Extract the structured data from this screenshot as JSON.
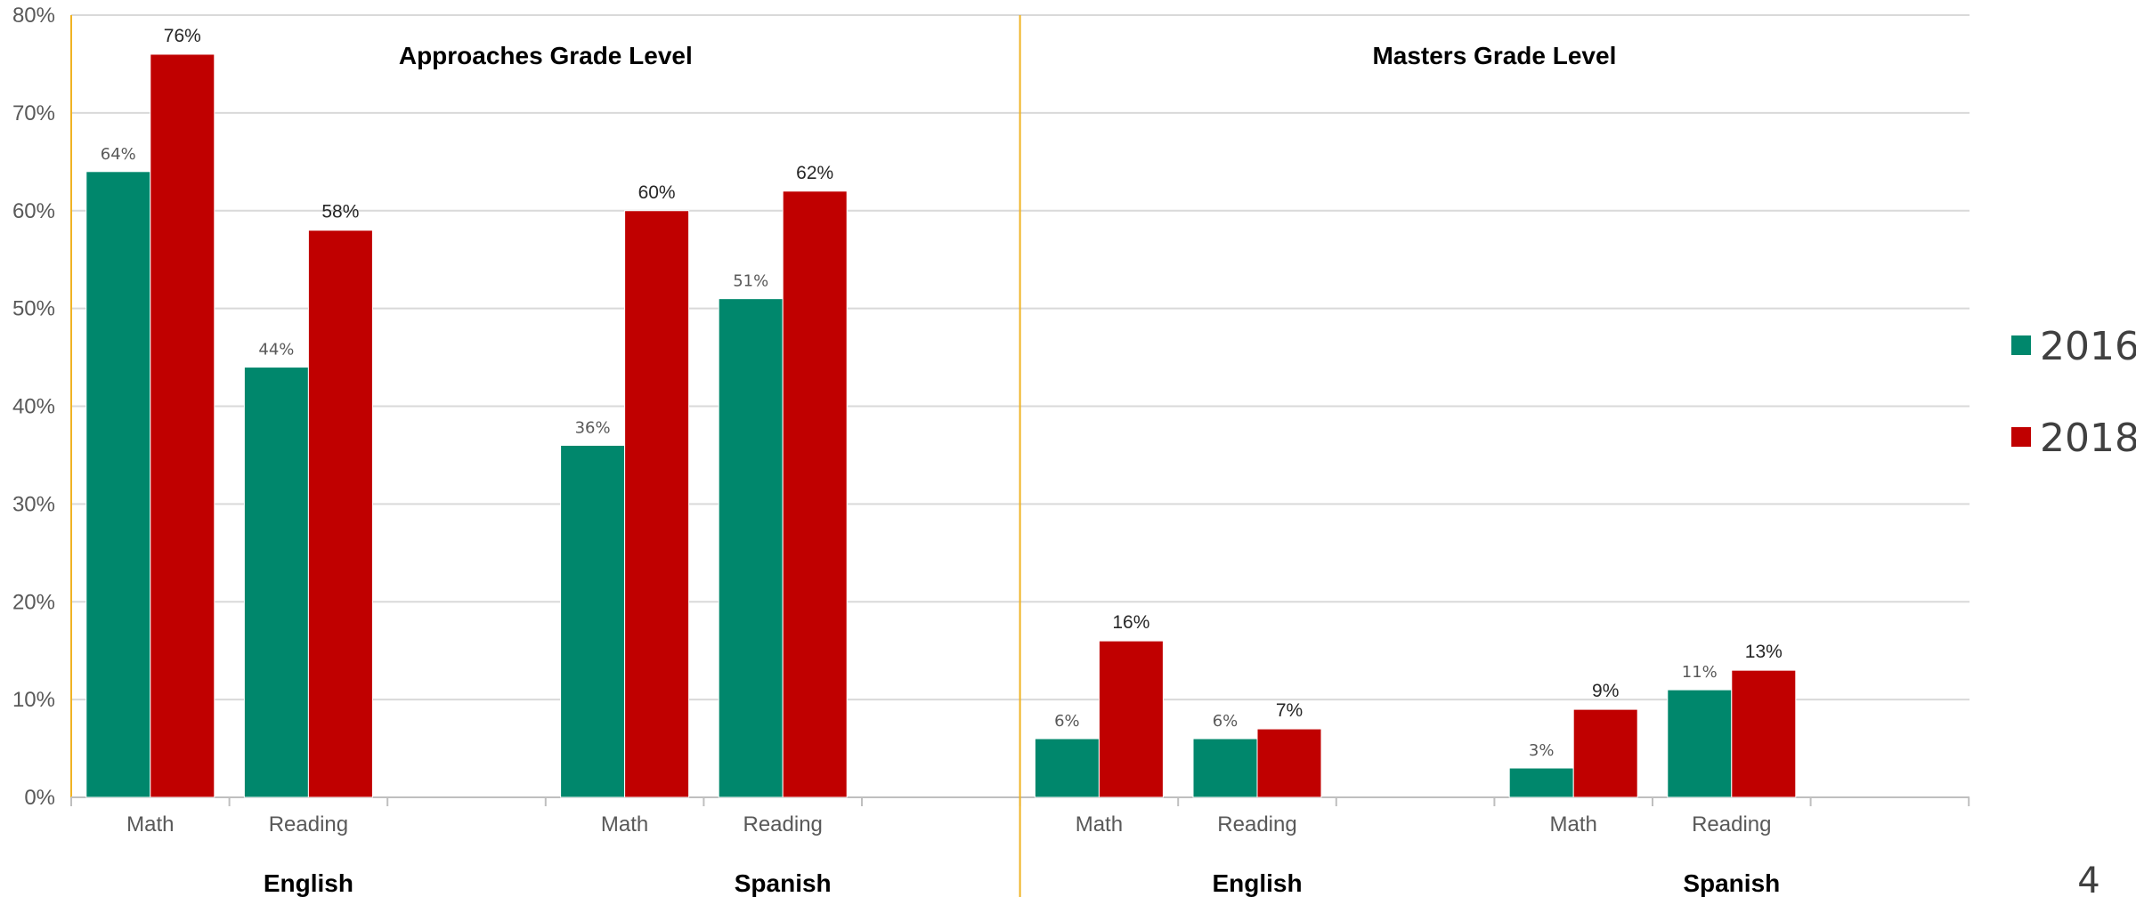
{
  "chart_data": {
    "type": "bar",
    "y_axis": {
      "ylim": [
        0,
        80
      ],
      "ticks": [
        "0%",
        "10%",
        "20%",
        "30%",
        "40%",
        "50%",
        "60%",
        "70%",
        "80%"
      ],
      "grid": true
    },
    "series": [
      {
        "name": "2016",
        "color": "#00876c"
      },
      {
        "name": "2018",
        "color": "#c00000"
      }
    ],
    "legend": {
      "placement": "right"
    },
    "panels": [
      {
        "title": "Approaches Grade Level",
        "groups": [
          {
            "language": "English",
            "categories": [
              {
                "label": "Math",
                "values": [
                  64,
                  76
                ],
                "labels": [
                  "64%",
                  "76%"
                ]
              },
              {
                "label": "Reading",
                "values": [
                  44,
                  58
                ],
                "labels": [
                  "44%",
                  "58%"
                ]
              }
            ]
          },
          {
            "language": "Spanish",
            "categories": [
              {
                "label": "Math",
                "values": [
                  36,
                  60
                ],
                "labels": [
                  "36%",
                  "60%"
                ]
              },
              {
                "label": "Reading",
                "values": [
                  51,
                  62
                ],
                "labels": [
                  "51%",
                  "62%"
                ]
              }
            ]
          }
        ]
      },
      {
        "title": "Masters Grade Level",
        "groups": [
          {
            "language": "English",
            "categories": [
              {
                "label": "Math",
                "values": [
                  6,
                  16
                ],
                "labels": [
                  "6%",
                  "16%"
                ]
              },
              {
                "label": "Reading",
                "values": [
                  6,
                  7
                ],
                "labels": [
                  "6%",
                  "7%"
                ]
              }
            ]
          },
          {
            "language": "Spanish",
            "categories": [
              {
                "label": "Math",
                "values": [
                  3,
                  9
                ],
                "labels": [
                  "3%",
                  "9%"
                ]
              },
              {
                "label": "Reading",
                "values": [
                  11,
                  13
                ],
                "labels": [
                  "11%",
                  "13%"
                ]
              }
            ]
          }
        ]
      }
    ]
  },
  "page_number": "4",
  "colors": {
    "divider": "#f0b323",
    "grid": "#d9d9d9",
    "axis": "#bfbfbf"
  }
}
